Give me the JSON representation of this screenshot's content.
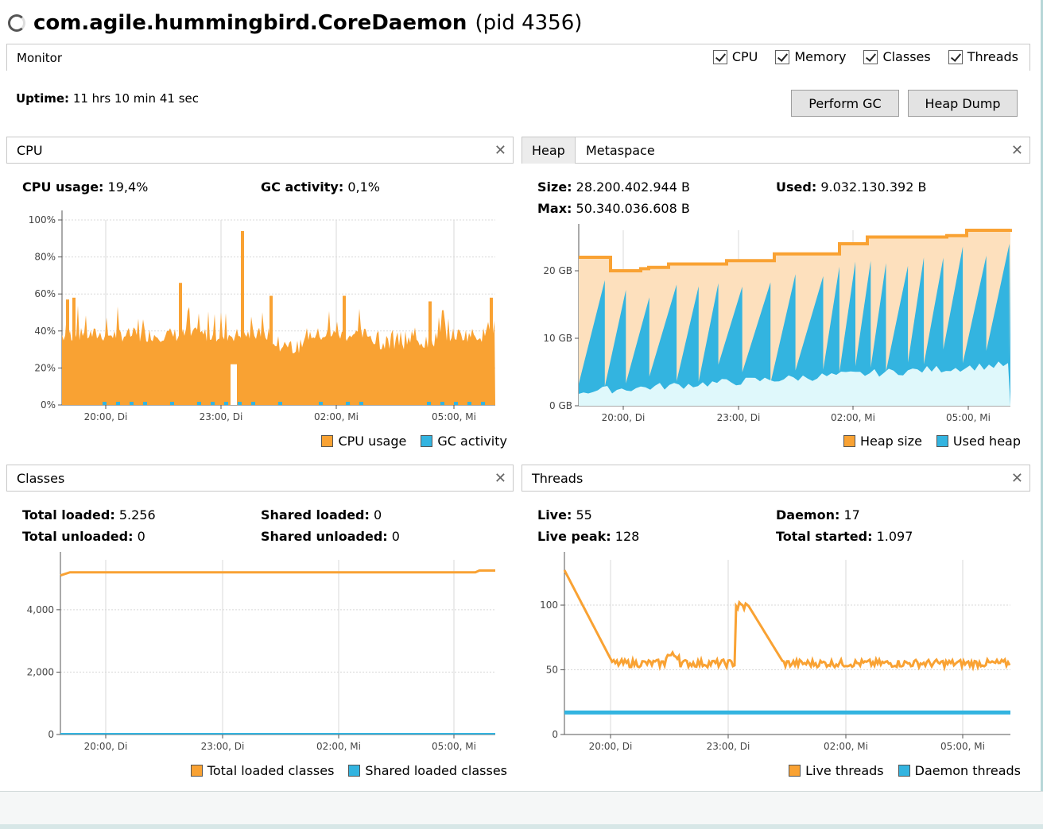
{
  "window": {
    "title": "com.agile.hummingbird.CoreDaemon",
    "pid_text": "(pid 4356)"
  },
  "monitor": {
    "label": "Monitor",
    "checkboxes": [
      {
        "label": "CPU",
        "checked": true
      },
      {
        "label": "Memory",
        "checked": true
      },
      {
        "label": "Classes",
        "checked": true
      },
      {
        "label": "Threads",
        "checked": true
      }
    ],
    "uptime_label": "Uptime:",
    "uptime_value": "11 hrs 10 min 41 sec",
    "perform_gc": "Perform GC",
    "heap_dump": "Heap Dump"
  },
  "colors": {
    "orange": "#f9a233",
    "blue": "#33b4e0",
    "light_orange": "#fde0bd",
    "light_blue": "#dff8fb"
  },
  "x_ticks": [
    "20:00, Di",
    "23:00, Di",
    "02:00, Mi",
    "05:00, Mi"
  ],
  "cpu": {
    "tab": "CPU",
    "usage_label": "CPU usage:",
    "usage_value": "19,4%",
    "gc_label": "GC activity:",
    "gc_value": "0,1%",
    "y_ticks": [
      "100%",
      "80%",
      "60%",
      "40%",
      "20%",
      "0%"
    ],
    "legend": [
      "CPU usage",
      "GC activity"
    ]
  },
  "memory": {
    "tabs": [
      "Heap",
      "Metaspace"
    ],
    "size_label": "Size:",
    "size_value": "28.200.402.944 B",
    "used_label": "Used:",
    "used_value": "9.032.130.392 B",
    "max_label": "Max:",
    "max_value": "50.340.036.608 B",
    "y_ticks": [
      "20 GB",
      "10 GB",
      "0 GB"
    ],
    "legend": [
      "Heap size",
      "Used heap"
    ]
  },
  "classes": {
    "tab": "Classes",
    "total_loaded_label": "Total loaded:",
    "total_loaded_value": "5.256",
    "total_unloaded_label": "Total unloaded:",
    "total_unloaded_value": "0",
    "shared_loaded_label": "Shared loaded:",
    "shared_loaded_value": "0",
    "shared_unloaded_label": "Shared unloaded:",
    "shared_unloaded_value": "0",
    "y_ticks": [
      "4,000",
      "2,000",
      "0"
    ],
    "legend": [
      "Total loaded classes",
      "Shared loaded classes"
    ]
  },
  "threads": {
    "tab": "Threads",
    "live_label": "Live:",
    "live_value": "55",
    "daemon_label": "Daemon:",
    "daemon_value": "17",
    "live_peak_label": "Live peak:",
    "live_peak_value": "128",
    "total_started_label": "Total started:",
    "total_started_value": "1.097",
    "y_ticks": [
      "100",
      "50",
      "0"
    ],
    "legend": [
      "Live threads",
      "Daemon threads"
    ]
  }
}
